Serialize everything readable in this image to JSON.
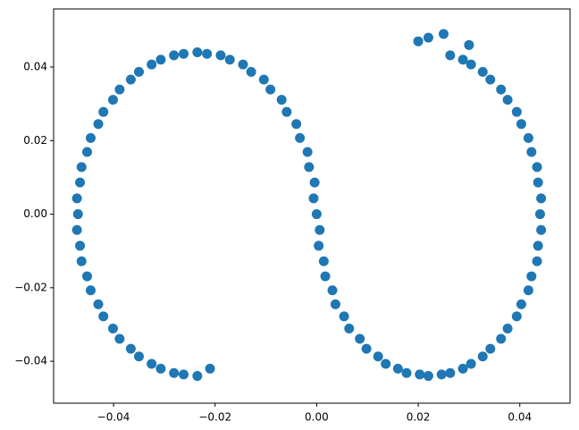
{
  "chart_data": {
    "type": "scatter",
    "color": "#1f77b4",
    "x": [
      0,
      0.0004,
      0.0017,
      0.0037,
      0.0064,
      0.0098,
      0.0136,
      0.0177,
      0.022,
      0.0263,
      0.0304,
      0.0342,
      0.0376,
      0.0403,
      0.0423,
      0.0436,
      0.044,
      0.0436,
      0.0423,
      0.0403,
      0.0376,
      0.0342,
      0.0304,
      0.0263,
      0.022,
      0.02,
      0.025,
      0.03,
      0.0006,
      0.0014,
      0.0031,
      0.0054,
      0.0085,
      0.0121,
      0.016,
      0.0203,
      0.0246,
      0.0288,
      0.0327,
      0.0363,
      0.0394,
      0.0417,
      0.0434,
      0.0442,
      0.0442,
      0.0434,
      0.0417,
      0.0394,
      0.0363,
      0.0327,
      0.0288,
      -0.0004,
      -0.0018,
      -0.004,
      -0.0069,
      -0.0104,
      -0.0145,
      -0.0189,
      -0.0235,
      -0.0281,
      -0.0325,
      -0.0366,
      -0.0401,
      -0.043,
      -0.0452,
      -0.0466,
      -0.047,
      -0.0466,
      -0.0452,
      -0.043,
      -0.0401,
      -0.0366,
      -0.0325,
      -0.0281,
      -0.0235,
      -0.021,
      -0.0006,
      -0.0015,
      -0.0033,
      -0.0059,
      -0.0091,
      -0.0129,
      -0.0171,
      -0.0216,
      -0.0262,
      -0.0307,
      -0.035,
      -0.0388,
      -0.042,
      -0.0445,
      -0.0463,
      -0.0472,
      -0.0472,
      -0.0463,
      -0.0445,
      -0.042,
      -0.0388,
      -0.035,
      -0.0307,
      -0.0262
    ],
    "values": [
      0,
      -0.0086,
      -0.0169,
      -0.0245,
      -0.0311,
      -0.0366,
      -0.0407,
      -0.0432,
      -0.044,
      -0.0432,
      -0.0407,
      -0.0366,
      -0.0311,
      -0.0245,
      -0.0169,
      -0.0086,
      0,
      0.0086,
      0.0169,
      0.0245,
      0.0311,
      0.0366,
      0.0407,
      0.0432,
      0.048,
      0.047,
      0.049,
      0.046,
      -0.0043,
      -0.0128,
      -0.0207,
      -0.0278,
      -0.0339,
      -0.0387,
      -0.042,
      -0.0436,
      -0.0436,
      -0.042,
      -0.0387,
      -0.0339,
      -0.0278,
      -0.0207,
      -0.0128,
      -0.0043,
      0.0043,
      0.0128,
      0.0207,
      0.0278,
      0.0339,
      0.0387,
      0.042,
      0.0086,
      0.0169,
      0.0245,
      0.0311,
      0.0366,
      0.0407,
      0.0432,
      0.044,
      0.0432,
      0.0407,
      0.0366,
      0.0311,
      0.0245,
      0.0169,
      0.0086,
      0,
      -0.0086,
      -0.0169,
      -0.0245,
      -0.0311,
      -0.0366,
      -0.0407,
      -0.0432,
      -0.044,
      -0.042,
      0.0043,
      0.0128,
      0.0207,
      0.0278,
      0.0339,
      0.0387,
      0.042,
      0.0436,
      0.0436,
      0.042,
      0.0387,
      0.0339,
      0.0278,
      0.0207,
      0.0128,
      0.0043,
      -0.0043,
      -0.0128,
      -0.0207,
      -0.0278,
      -0.0339,
      -0.0387,
      -0.042,
      -0.0436
    ],
    "xlim": [
      -0.0518,
      0.0499
    ],
    "ylim": [
      -0.0514,
      0.0558
    ],
    "xticks": [
      {
        "value": -0.04,
        "label": "−0.04"
      },
      {
        "value": -0.02,
        "label": "−0.02"
      },
      {
        "value": 0,
        "label": "0.00"
      },
      {
        "value": 0.02,
        "label": "0.02"
      },
      {
        "value": 0.04,
        "label": "0.04"
      }
    ],
    "yticks": [
      {
        "value": -0.04,
        "label": "−0.04"
      },
      {
        "value": -0.02,
        "label": "−0.02"
      },
      {
        "value": 0,
        "label": "0.00"
      },
      {
        "value": 0.02,
        "label": "0.02"
      },
      {
        "value": 0.04,
        "label": "0.04"
      }
    ],
    "grid": false
  }
}
